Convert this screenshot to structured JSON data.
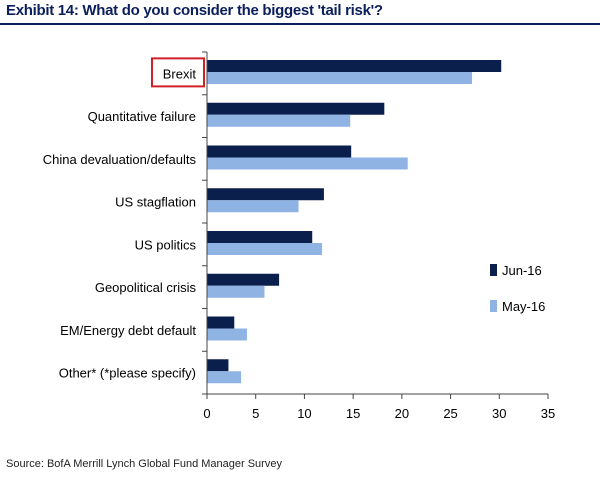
{
  "header": {
    "title": "Exhibit 14: What do you consider the biggest 'tail risk'?"
  },
  "footer": {
    "source": "Source: BofA Merrill Lynch Global Fund Manager Survey"
  },
  "colors": {
    "series_1": "#0b1f4d",
    "series_2": "#8fb4e3",
    "highlight_box": "#d0202a",
    "title": "#0b1f5c"
  },
  "chart_data": {
    "type": "bar",
    "orientation": "horizontal",
    "categories": [
      "Brexit",
      "Quantitative failure",
      "China devaluation/defaults",
      "US stagflation",
      "US politics",
      "Geopolitical crisis",
      "EM/Energy debt default",
      "Other* (*please specify)"
    ],
    "series": [
      {
        "name": "Jun-16",
        "values": [
          30.2,
          18.2,
          14.8,
          12.0,
          10.8,
          7.4,
          2.8,
          2.2
        ]
      },
      {
        "name": "May-16",
        "values": [
          27.2,
          14.7,
          20.6,
          9.4,
          11.8,
          5.9,
          4.1,
          3.5
        ]
      }
    ],
    "highlighted_category": "Brexit",
    "xlim": [
      0,
      35
    ],
    "xticks": [
      0,
      5,
      10,
      15,
      20,
      25,
      30,
      35
    ],
    "legend_position": "right",
    "grid": false
  }
}
